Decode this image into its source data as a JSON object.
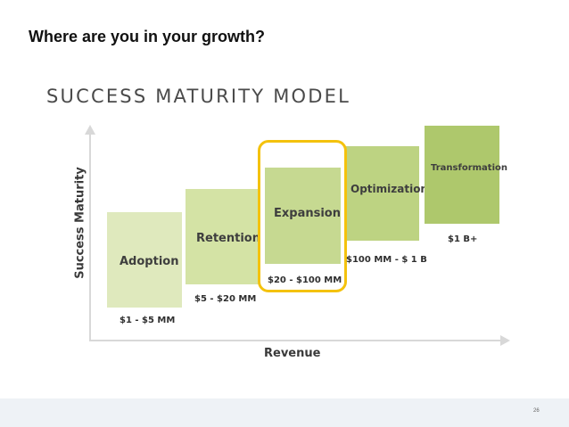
{
  "slide": {
    "title": "Where are you in your growth?",
    "page_number": "26"
  },
  "model": {
    "title": "SUCCESS MATURITY MODEL",
    "y_axis_label": "Success Maturity",
    "x_axis_label": "Revenue",
    "highlighted_stage": "Expansion",
    "highlight_color": "#f4c20d",
    "stages": [
      {
        "name": "Adoption",
        "range": "$1 - $5 MM",
        "color": "#dfe9bd"
      },
      {
        "name": "Retention",
        "range": "$5 - $20 MM",
        "color": "#d4e3a5"
      },
      {
        "name": "Expansion",
        "range": "$20 - $100 MM",
        "color": "#c6d991"
      },
      {
        "name": "Optimization",
        "range": "$100 MM - $ 1 B",
        "color": "#bdd382"
      },
      {
        "name": "Transformation",
        "range": "$1 B+",
        "color": "#aec86c"
      }
    ]
  }
}
